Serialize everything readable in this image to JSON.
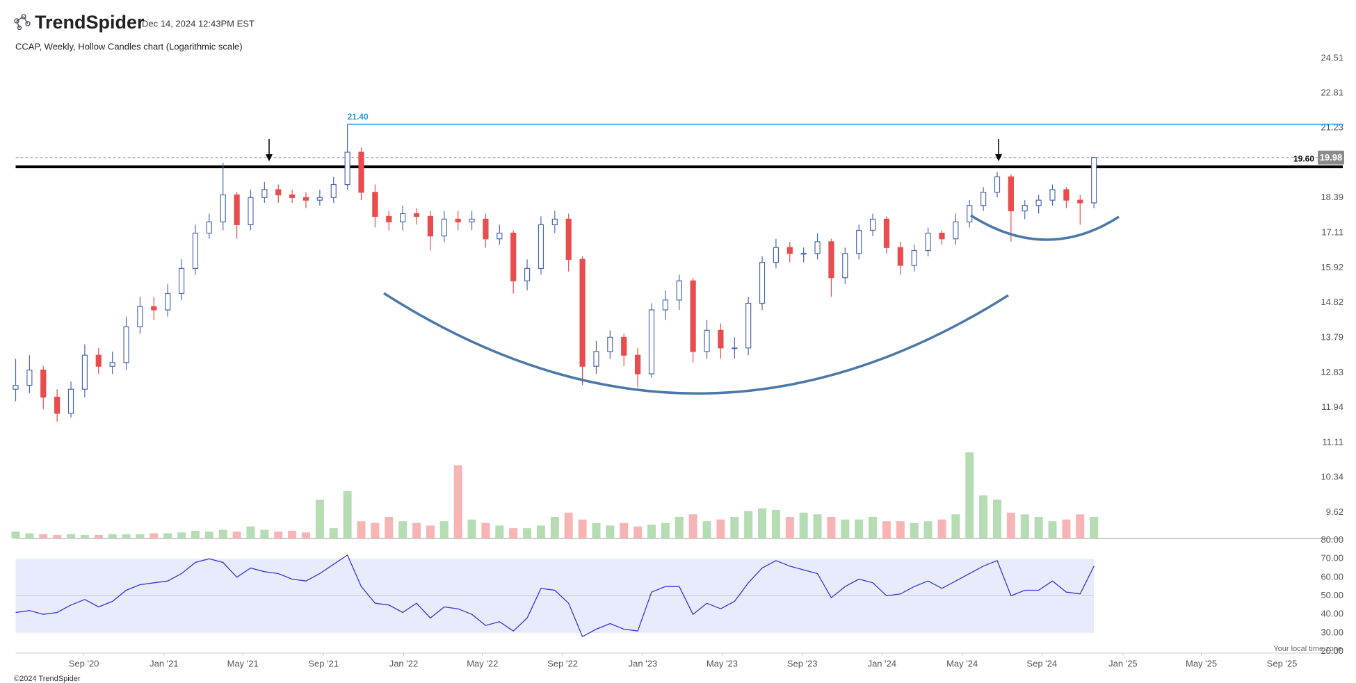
{
  "header": {
    "brand": "TrendSpider",
    "timestamp": "Dec 14, 2024 12:43PM EST"
  },
  "footer": {
    "copyright": "©2024 TrendSpider",
    "timezone": "Your local time zone"
  },
  "chart_data": [
    {
      "type": "candlestick",
      "title": "CCAP, Weekly, Hollow Candles chart (Logarithmic scale)",
      "log_scale": true,
      "x": [
        0,
        3,
        6,
        9,
        12,
        15,
        18,
        21,
        24,
        27,
        30,
        33,
        36,
        39,
        42,
        45,
        48,
        51,
        54,
        57,
        60,
        63,
        66,
        69,
        72,
        75,
        78,
        81,
        84,
        87,
        90,
        93,
        96,
        99,
        102,
        105,
        108,
        111,
        114,
        117,
        120,
        123,
        126,
        129,
        132,
        135,
        138,
        141,
        144,
        147,
        150,
        153,
        156,
        159,
        162,
        165,
        168,
        171,
        174,
        177,
        180,
        183,
        186,
        189,
        192,
        195,
        198,
        201,
        204,
        207,
        210,
        213,
        216,
        219,
        222,
        225,
        228,
        231,
        234
      ],
      "open": [
        12.4,
        12.5,
        12.9,
        12.2,
        11.8,
        12.4,
        13.3,
        13.0,
        13.1,
        14.1,
        14.7,
        14.6,
        15.1,
        15.9,
        17.1,
        17.5,
        18.5,
        17.4,
        18.4,
        18.7,
        18.5,
        18.4,
        18.3,
        18.4,
        18.9,
        20.2,
        18.6,
        17.7,
        17.5,
        17.8,
        17.7,
        17.0,
        17.6,
        17.5,
        17.6,
        16.9,
        17.1,
        15.5,
        15.9,
        17.4,
        17.6,
        16.2,
        13.0,
        13.4,
        13.8,
        13.3,
        12.8,
        14.6,
        14.9,
        15.5,
        13.4,
        14.0,
        13.5,
        13.5,
        14.8,
        16.1,
        16.6,
        16.4,
        16.4,
        16.8,
        15.6,
        16.4,
        17.2,
        17.6,
        16.6,
        16.0,
        16.5,
        17.1,
        16.9,
        17.5,
        18.1,
        18.6,
        19.2,
        17.9,
        18.1,
        18.3,
        18.7,
        18.3,
        18.2
      ],
      "high": [
        13.2,
        13.3,
        13.0,
        12.4,
        12.6,
        13.6,
        13.5,
        13.4,
        14.4,
        15.0,
        15.0,
        15.4,
        16.2,
        17.4,
        17.8,
        19.76,
        18.6,
        18.7,
        19.0,
        18.9,
        18.7,
        18.6,
        18.7,
        19.2,
        21.4,
        20.4,
        18.9,
        17.9,
        18.1,
        18.0,
        17.9,
        17.9,
        17.9,
        17.9,
        17.8,
        17.4,
        17.2,
        16.2,
        17.7,
        17.9,
        17.8,
        16.3,
        13.7,
        14.0,
        13.9,
        13.5,
        14.8,
        15.2,
        15.7,
        15.6,
        14.3,
        14.2,
        13.8,
        15.0,
        16.3,
        16.9,
        16.8,
        16.6,
        17.1,
        16.9,
        16.6,
        17.4,
        17.8,
        17.7,
        16.8,
        16.7,
        17.3,
        17.2,
        17.8,
        18.3,
        18.8,
        19.4,
        19.3,
        18.3,
        18.5,
        18.9,
        18.8,
        18.5,
        19.98
      ],
      "low": [
        12.1,
        12.3,
        11.9,
        11.6,
        11.7,
        12.2,
        12.8,
        12.8,
        12.9,
        13.9,
        14.3,
        14.4,
        14.9,
        15.7,
        16.9,
        17.2,
        16.9,
        17.2,
        18.2,
        18.2,
        18.2,
        18.0,
        18.1,
        18.2,
        18.7,
        18.3,
        17.3,
        17.2,
        17.2,
        17.4,
        16.5,
        16.8,
        17.2,
        17.2,
        16.6,
        16.7,
        15.1,
        15.2,
        15.7,
        17.1,
        15.8,
        12.5,
        12.8,
        13.2,
        13.0,
        12.45,
        12.7,
        14.3,
        14.6,
        13.1,
        13.2,
        13.2,
        13.2,
        13.3,
        14.6,
        15.9,
        16.1,
        16.1,
        16.2,
        15.0,
        15.4,
        16.2,
        17.0,
        16.4,
        15.7,
        15.8,
        16.3,
        16.7,
        16.7,
        17.3,
        17.9,
        18.4,
        16.8,
        17.6,
        17.8,
        18.1,
        18.0,
        17.4,
        18.0
      ],
      "close": [
        12.5,
        12.9,
        12.2,
        11.8,
        12.4,
        13.3,
        13.0,
        13.1,
        14.1,
        14.7,
        14.6,
        15.1,
        15.9,
        17.1,
        17.5,
        18.5,
        17.4,
        18.4,
        18.7,
        18.5,
        18.4,
        18.3,
        18.4,
        18.9,
        20.2,
        18.6,
        17.7,
        17.5,
        17.8,
        17.7,
        17.0,
        17.6,
        17.5,
        17.6,
        16.9,
        17.1,
        15.5,
        15.9,
        17.4,
        17.6,
        16.2,
        13.0,
        13.4,
        13.8,
        13.3,
        12.8,
        14.6,
        14.9,
        15.5,
        13.4,
        14.0,
        13.5,
        13.5,
        14.8,
        16.1,
        16.6,
        16.4,
        16.4,
        16.8,
        15.6,
        16.4,
        17.2,
        17.6,
        16.6,
        16.0,
        16.5,
        17.1,
        16.9,
        17.5,
        18.1,
        18.6,
        19.2,
        17.9,
        18.1,
        18.3,
        18.7,
        18.3,
        18.2,
        19.98
      ],
      "volume": [
        8,
        6,
        5,
        4,
        5,
        4,
        4,
        5,
        5,
        5,
        6,
        6,
        7,
        9,
        8,
        10,
        8,
        14,
        10,
        8,
        9,
        7,
        45,
        12,
        55,
        20,
        18,
        25,
        20,
        18,
        15,
        20,
        85,
        22,
        18,
        15,
        12,
        12,
        15,
        25,
        30,
        22,
        18,
        15,
        18,
        14,
        16,
        18,
        25,
        28,
        20,
        22,
        25,
        32,
        35,
        33,
        25,
        30,
        28,
        25,
        22,
        22,
        25,
        20,
        20,
        18,
        20,
        22,
        28,
        100,
        50,
        45,
        30,
        28,
        25,
        20,
        22,
        28,
        25
      ],
      "up_color": "#4a67b3",
      "down_color": "#e84c4c",
      "volume_up_color": "#b5dcb2",
      "volume_down_color": "#f7b4b4",
      "xlim": [
        0,
        288
      ],
      "xticks": [
        {
          "value": 14.8,
          "label": "Sep '20"
        },
        {
          "value": 32.2,
          "label": "Jan '21"
        },
        {
          "value": 49.3,
          "label": "May '21"
        },
        {
          "value": 66.8,
          "label": "Sep '21"
        },
        {
          "value": 84.2,
          "label": "Jan '22"
        },
        {
          "value": 101.3,
          "label": "May '22"
        },
        {
          "value": 118.7,
          "label": "Sep '22"
        },
        {
          "value": 136.1,
          "label": "Jan '23"
        },
        {
          "value": 153.3,
          "label": "May '23"
        },
        {
          "value": 170.7,
          "label": "Sep '23"
        },
        {
          "value": 188.0,
          "label": "Jan '24"
        },
        {
          "value": 205.4,
          "label": "May '24"
        },
        {
          "value": 222.7,
          "label": "Sep '24"
        },
        {
          "value": 240.3,
          "label": "Jan '25"
        },
        {
          "value": 257.3,
          "label": "May '25"
        },
        {
          "value": 274.8,
          "label": "Sep '25"
        }
      ],
      "ylim": [
        9.12,
        25.27
      ],
      "yticks": [
        24.51,
        22.81,
        21.23,
        18.39,
        17.11,
        15.92,
        14.82,
        13.79,
        12.83,
        11.94,
        11.11,
        10.34,
        9.62
      ],
      "levels": [
        {
          "value": 19.6,
          "label": "19.60",
          "color": "#000000",
          "style": "solid"
        },
        {
          "value": 21.4,
          "label": "21.40",
          "color": "#2196f3",
          "style": "solid",
          "from_x": 72
        },
        {
          "value": 19.98,
          "label": "19.98",
          "color": "#999999",
          "style": "dashed"
        }
      ]
    },
    {
      "type": "line",
      "name": "RSI",
      "x": [
        0,
        3,
        6,
        9,
        12,
        15,
        18,
        21,
        24,
        27,
        30,
        33,
        36,
        39,
        42,
        45,
        48,
        51,
        54,
        57,
        60,
        63,
        66,
        69,
        72,
        75,
        78,
        81,
        84,
        87,
        90,
        93,
        96,
        99,
        102,
        105,
        108,
        111,
        114,
        117,
        120,
        123,
        126,
        129,
        132,
        135,
        138,
        141,
        144,
        147,
        150,
        153,
        156,
        159,
        162,
        165,
        168,
        171,
        174,
        177,
        180,
        183,
        186,
        189,
        192,
        195,
        198,
        201,
        204,
        207,
        210,
        213,
        216,
        219,
        222,
        225,
        228,
        231,
        234
      ],
      "values": [
        41,
        42,
        40,
        41,
        45,
        48,
        44,
        47,
        53,
        56,
        57,
        58,
        62,
        68,
        70,
        68,
        60,
        65,
        63,
        62,
        59,
        58,
        62,
        67,
        72,
        55,
        46,
        45,
        41,
        46,
        38,
        44,
        43,
        40,
        34,
        36,
        31,
        38,
        54,
        53,
        46,
        28,
        32,
        35,
        32,
        31,
        52,
        55,
        55,
        40,
        46,
        43,
        47,
        57,
        65,
        69,
        66,
        64,
        62,
        49,
        55,
        59,
        57,
        50,
        51,
        55,
        58,
        54,
        58,
        62,
        66,
        69,
        50,
        53,
        53,
        58,
        52,
        51,
        66
      ],
      "color": "#3434d6",
      "band": [
        30,
        70
      ],
      "band_color": "#e8ebfb",
      "midline": 50,
      "ylim": [
        20,
        80
      ],
      "yticks": [
        {
          "value": 80,
          "label": "80.00"
        },
        {
          "value": 70,
          "label": "70.00"
        },
        {
          "value": 60,
          "label": "60.00"
        },
        {
          "value": 50,
          "label": "50.00"
        },
        {
          "value": 40,
          "label": "40.00"
        },
        {
          "value": 30,
          "label": "30.00"
        },
        {
          "value": 20,
          "label": "20.00"
        }
      ]
    }
  ]
}
